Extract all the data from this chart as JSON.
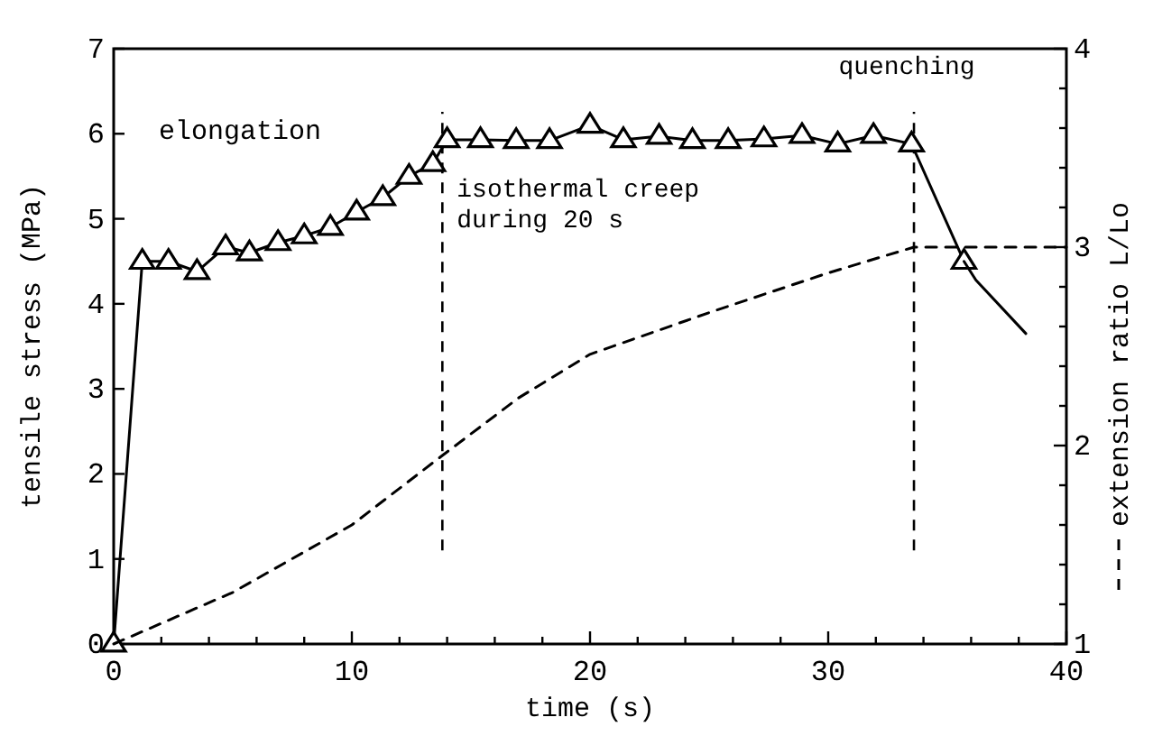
{
  "chart_data": {
    "type": "line",
    "xlabel": "time (s)",
    "ylabel": "tensile stress (MPa)",
    "y2label": "extension ratio L/Lo",
    "xlim": [
      0,
      40
    ],
    "xticks": [
      0,
      {
        "value": 2,
        "label": null
      },
      {
        "value": 4,
        "label": null
      },
      {
        "value": 6,
        "label": null
      },
      {
        "value": 8,
        "label": null
      },
      10,
      {
        "value": 12,
        "label": null
      },
      {
        "value": 14,
        "label": null
      },
      {
        "value": 16,
        "label": null
      },
      {
        "value": 18,
        "label": null
      },
      20,
      {
        "value": 22,
        "label": null
      },
      {
        "value": 24,
        "label": null
      },
      {
        "value": 26,
        "label": null
      },
      {
        "value": 28,
        "label": null
      },
      30,
      {
        "value": 32,
        "label": null
      },
      {
        "value": 34,
        "label": null
      },
      {
        "value": 36,
        "label": null
      },
      {
        "value": 38,
        "label": null
      },
      40
    ],
    "ylim": [
      0,
      7
    ],
    "yticks": [
      0,
      1,
      2,
      3,
      4,
      5,
      6,
      7
    ],
    "y2lim": [
      1,
      4
    ],
    "y2ticks": [
      1,
      {
        "value": 1.2,
        "label": null
      },
      {
        "value": 1.4,
        "label": null
      },
      {
        "value": 1.6,
        "label": null
      },
      {
        "value": 1.8,
        "label": null
      },
      2,
      {
        "value": 2.2,
        "label": null
      },
      {
        "value": 2.4,
        "label": null
      },
      {
        "value": 2.6,
        "label": null
      },
      {
        "value": 2.8,
        "label": null
      },
      3,
      {
        "value": 3.2,
        "label": null
      },
      {
        "value": 3.4,
        "label": null
      },
      {
        "value": 3.6,
        "label": null
      },
      {
        "value": 3.8,
        "label": null
      },
      4
    ],
    "grid": false,
    "series": [
      {
        "color": "#000000",
        "marker": "triangle",
        "line_style": "solid",
        "x": [
          0,
          1.2,
          2.3,
          3.5,
          4.7,
          5.7,
          6.9,
          8,
          9.1,
          10.2,
          11.3,
          12.4,
          13.4,
          14,
          15.4,
          16.9,
          18.3,
          20,
          21.4,
          22.9,
          24.3,
          25.8,
          27.3,
          28.9,
          30.4,
          31.9,
          33.5,
          35.7
        ],
        "values": [
          0,
          4.5,
          4.5,
          4.38,
          4.67,
          4.6,
          4.72,
          4.8,
          4.9,
          5.08,
          5.25,
          5.5,
          5.65,
          5.93,
          5.93,
          5.92,
          5.92,
          6.1,
          5.93,
          5.97,
          5.92,
          5.92,
          5.94,
          5.98,
          5.88,
          5.98,
          5.88,
          4.5
        ]
      },
      {
        "color": "#000000",
        "marker": "none",
        "line_style": "solid",
        "x": [
          35.7,
          36.2,
          38.3
        ],
        "values": [
          4.5,
          4.28,
          3.65
        ]
      },
      {
        "color": "#000000",
        "marker": "none",
        "line_style": "dashed",
        "axis": "y2",
        "x": [
          0,
          5,
          10,
          13.8,
          17,
          20,
          25,
          30,
          33.6,
          40
        ],
        "values": [
          1,
          1.26,
          1.6,
          1.95,
          2.24,
          2.46,
          2.67,
          2.87,
          3,
          3
        ]
      }
    ],
    "ref_lines": [
      {
        "axis": "x",
        "value": 13.8,
        "line_style": "dashed",
        "color": "#000000",
        "label": "isothermal creep\nduring 20 s"
      },
      {
        "axis": "x",
        "value": 33.6,
        "line_style": "dashed",
        "color": "#000000",
        "label": "quenching"
      }
    ],
    "annotations": [
      "elongation"
    ]
  }
}
